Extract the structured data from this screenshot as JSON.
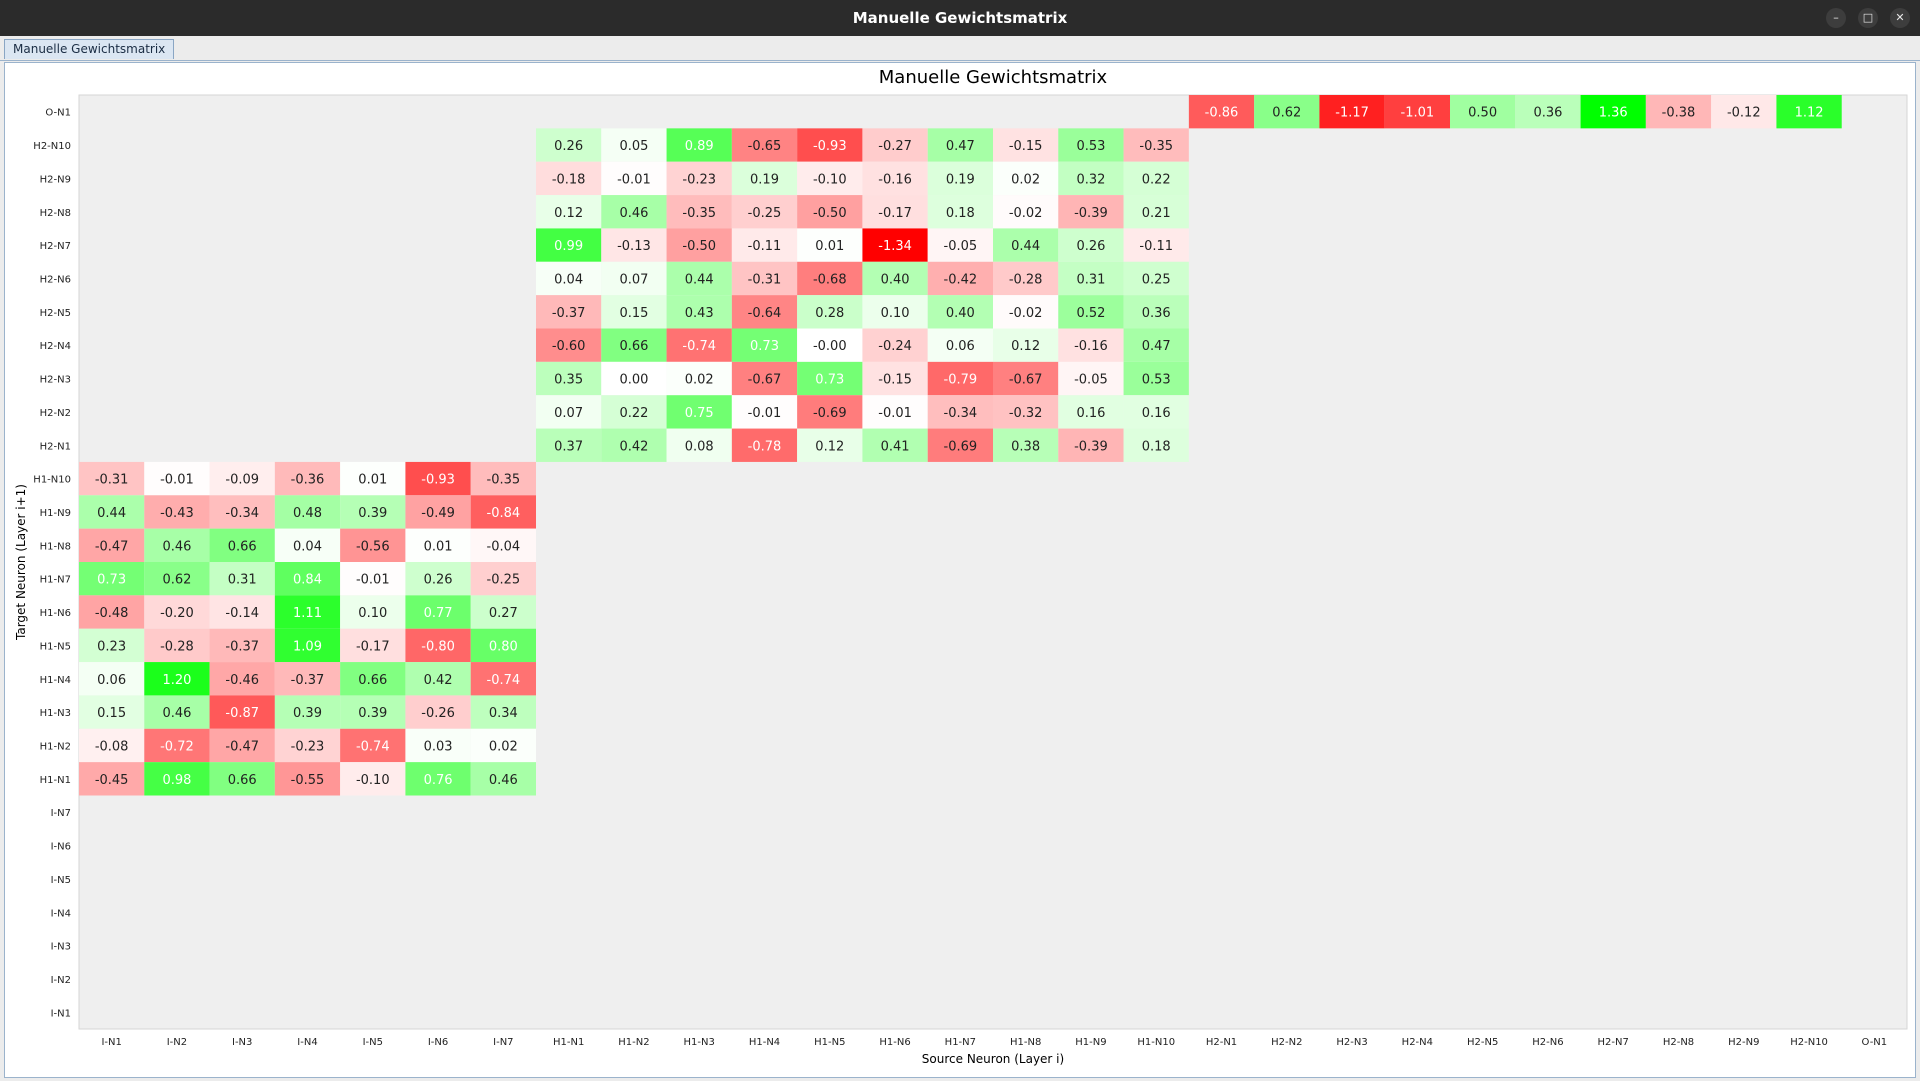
{
  "window": {
    "title": "Manuelle Gewichtsmatrix",
    "minimize_icon": "minimize-icon",
    "maximize_icon": "maximize-icon",
    "close_icon": "close-icon"
  },
  "tabs": [
    {
      "label": "Manuelle Gewichtsmatrix",
      "selected": true
    }
  ],
  "chart_data": {
    "type": "heatmap",
    "title": "Manuelle Gewichtsmatrix",
    "xlabel": "Source Neuron (Layer i)",
    "ylabel": "Target Neuron (Layer i+1)",
    "x_labels": [
      "I-N1",
      "I-N2",
      "I-N3",
      "I-N4",
      "I-N5",
      "I-N6",
      "I-N7",
      "H1-N1",
      "H1-N2",
      "H1-N3",
      "H1-N4",
      "H1-N5",
      "H1-N6",
      "H1-N7",
      "H1-N8",
      "H1-N9",
      "H1-N10",
      "H2-N1",
      "H2-N2",
      "H2-N3",
      "H2-N4",
      "H2-N5",
      "H2-N6",
      "H2-N7",
      "H2-N8",
      "H2-N9",
      "H2-N10",
      "O-N1"
    ],
    "y_labels_top_to_bottom": [
      "O-N1",
      "H2-N10",
      "H2-N9",
      "H2-N8",
      "H2-N7",
      "H2-N6",
      "H2-N5",
      "H2-N4",
      "H2-N3",
      "H2-N2",
      "H2-N1",
      "H1-N10",
      "H1-N9",
      "H1-N8",
      "H1-N7",
      "H1-N6",
      "H1-N5",
      "H1-N4",
      "H1-N3",
      "H1-N2",
      "H1-N1",
      "I-N7",
      "I-N6",
      "I-N5",
      "I-N4",
      "I-N3",
      "I-N2",
      "I-N1"
    ],
    "colors": {
      "negative": "#ff0000",
      "positive": "#00ff00",
      "zero": "#ffffff",
      "empty": "#efefef"
    },
    "blocks": [
      {
        "rows": [
          "O-N1"
        ],
        "cols": [
          "H2-N1",
          "H2-N2",
          "H2-N3",
          "H2-N4",
          "H2-N5",
          "H2-N6",
          "H2-N7",
          "H2-N8",
          "H2-N9",
          "H2-N10"
        ],
        "values": [
          [
            "-0.86",
            "0.62",
            "-1.17",
            "-1.01",
            "0.50",
            "0.36",
            "1.36",
            "-0.38",
            "-0.12",
            "1.12"
          ]
        ]
      },
      {
        "rows": [
          "H2-N10",
          "H2-N9",
          "H2-N8",
          "H2-N7",
          "H2-N6",
          "H2-N5",
          "H2-N4",
          "H2-N3",
          "H2-N2",
          "H2-N1"
        ],
        "cols": [
          "H1-N1",
          "H1-N2",
          "H1-N3",
          "H1-N4",
          "H1-N5",
          "H1-N6",
          "H1-N7",
          "H1-N8",
          "H1-N9",
          "H1-N10"
        ],
        "values": [
          [
            "0.26",
            "0.05",
            "0.89",
            "-0.65",
            "-0.93",
            "-0.27",
            "0.47",
            "-0.15",
            "0.53",
            "-0.35"
          ],
          [
            "-0.18",
            "-0.01",
            "-0.23",
            "0.19",
            "-0.10",
            "-0.16",
            "0.19",
            "0.02",
            "0.32",
            "0.22"
          ],
          [
            "0.12",
            "0.46",
            "-0.35",
            "-0.25",
            "-0.50",
            "-0.17",
            "0.18",
            "-0.02",
            "-0.39",
            "0.21"
          ],
          [
            "0.99",
            "-0.13",
            "-0.50",
            "-0.11",
            "0.01",
            "-1.34",
            "-0.05",
            "0.44",
            "0.26",
            "-0.11"
          ],
          [
            "0.04",
            "0.07",
            "0.44",
            "-0.31",
            "-0.68",
            "0.40",
            "-0.42",
            "-0.28",
            "0.31",
            "0.25"
          ],
          [
            "-0.37",
            "0.15",
            "0.43",
            "-0.64",
            "0.28",
            "0.10",
            "0.40",
            "-0.02",
            "0.52",
            "0.36"
          ],
          [
            "-0.60",
            "0.66",
            "-0.74",
            "0.73",
            "-0.00",
            "-0.24",
            "0.06",
            "0.12",
            "-0.16",
            "0.47"
          ],
          [
            "0.35",
            "0.00",
            "0.02",
            "-0.67",
            "0.73",
            "-0.15",
            "-0.79",
            "-0.67",
            "-0.05",
            "0.53"
          ],
          [
            "0.07",
            "0.22",
            "0.75",
            "-0.01",
            "-0.69",
            "-0.01",
            "-0.34",
            "-0.32",
            "0.16",
            "0.16"
          ],
          [
            "0.37",
            "0.42",
            "0.08",
            "-0.78",
            "0.12",
            "0.41",
            "-0.69",
            "0.38",
            "-0.39",
            "0.18"
          ]
        ]
      },
      {
        "rows": [
          "H1-N10",
          "H1-N9",
          "H1-N8",
          "H1-N7",
          "H1-N6",
          "H1-N5",
          "H1-N4",
          "H1-N3",
          "H1-N2",
          "H1-N1"
        ],
        "cols": [
          "I-N1",
          "I-N2",
          "I-N3",
          "I-N4",
          "I-N5",
          "I-N6",
          "I-N7"
        ],
        "values": [
          [
            "-0.31",
            "-0.01",
            "-0.09",
            "-0.36",
            "0.01",
            "-0.93",
            "-0.35"
          ],
          [
            "0.44",
            "-0.43",
            "-0.34",
            "0.48",
            "0.39",
            "-0.49",
            "-0.84"
          ],
          [
            "-0.47",
            "0.46",
            "0.66",
            "0.04",
            "-0.56",
            "0.01",
            "-0.04"
          ],
          [
            "0.73",
            "0.62",
            "0.31",
            "0.84",
            "-0.01",
            "0.26",
            "-0.25"
          ],
          [
            "-0.48",
            "-0.20",
            "-0.14",
            "1.11",
            "0.10",
            "0.77",
            "0.27"
          ],
          [
            "0.23",
            "-0.28",
            "-0.37",
            "1.09",
            "-0.17",
            "-0.80",
            "0.80"
          ],
          [
            "0.06",
            "1.20",
            "-0.46",
            "-0.37",
            "0.66",
            "0.42",
            "-0.74"
          ],
          [
            "0.15",
            "0.46",
            "-0.87",
            "0.39",
            "0.39",
            "-0.26",
            "0.34"
          ],
          [
            "-0.08",
            "-0.72",
            "-0.47",
            "-0.23",
            "-0.74",
            "0.03",
            "0.02"
          ],
          [
            "-0.45",
            "0.98",
            "0.66",
            "-0.55",
            "-0.10",
            "0.76",
            "0.46"
          ]
        ]
      }
    ]
  }
}
